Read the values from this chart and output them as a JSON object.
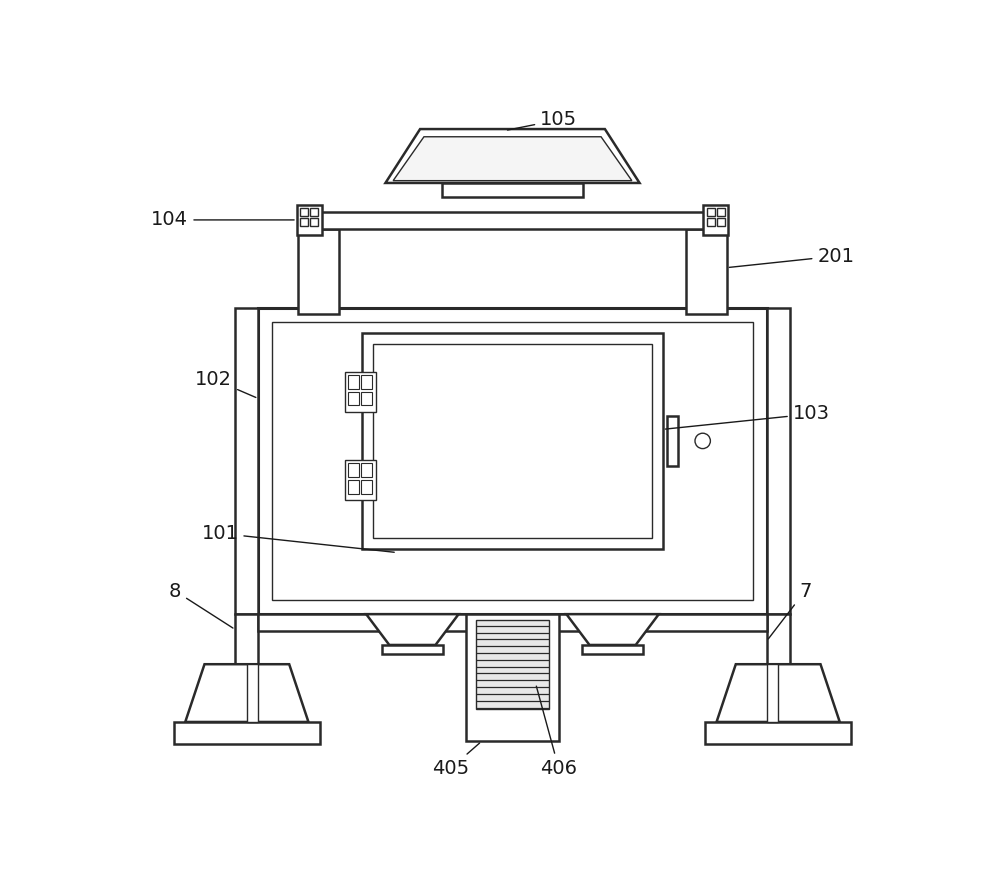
{
  "bg_color": "#ffffff",
  "line_color": "#2a2a2a",
  "lw_main": 1.8,
  "lw_thin": 1.0,
  "lw_thick": 2.2
}
